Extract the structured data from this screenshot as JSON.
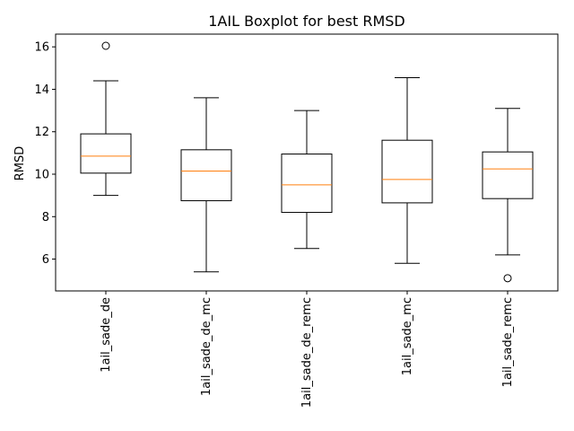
{
  "chart_data": {
    "type": "boxplot",
    "title": "1AIL Boxplot for best RMSD",
    "xlabel": "",
    "ylabel": "RMSD",
    "ylim": [
      4.5,
      16.6
    ],
    "yticks": [
      6,
      8,
      10,
      12,
      14,
      16
    ],
    "grid": false,
    "categories": [
      "1ail_sade_de",
      "1ail_sade_de_mc",
      "1ail_sade_de_remc",
      "1ail_sade_mc",
      "1ail_sade_remc"
    ],
    "boxes": [
      {
        "whisker_low": 9.0,
        "q1": 10.05,
        "median": 10.85,
        "q3": 11.9,
        "whisker_high": 14.4,
        "outliers": [
          16.05
        ]
      },
      {
        "whisker_low": 5.4,
        "q1": 8.75,
        "median": 10.15,
        "q3": 11.15,
        "whisker_high": 13.6,
        "outliers": []
      },
      {
        "whisker_low": 6.5,
        "q1": 8.2,
        "median": 9.5,
        "q3": 10.95,
        "whisker_high": 13.0,
        "outliers": []
      },
      {
        "whisker_low": 5.8,
        "q1": 8.65,
        "median": 9.75,
        "q3": 11.6,
        "whisker_high": 14.55,
        "outliers": []
      },
      {
        "whisker_low": 6.2,
        "q1": 8.85,
        "median": 10.25,
        "q3": 11.05,
        "whisker_high": 13.1,
        "outliers": [
          5.1
        ]
      }
    ],
    "colors": {
      "box": "#000000",
      "median": "#ff7f0e",
      "outlier": "#000000"
    }
  }
}
